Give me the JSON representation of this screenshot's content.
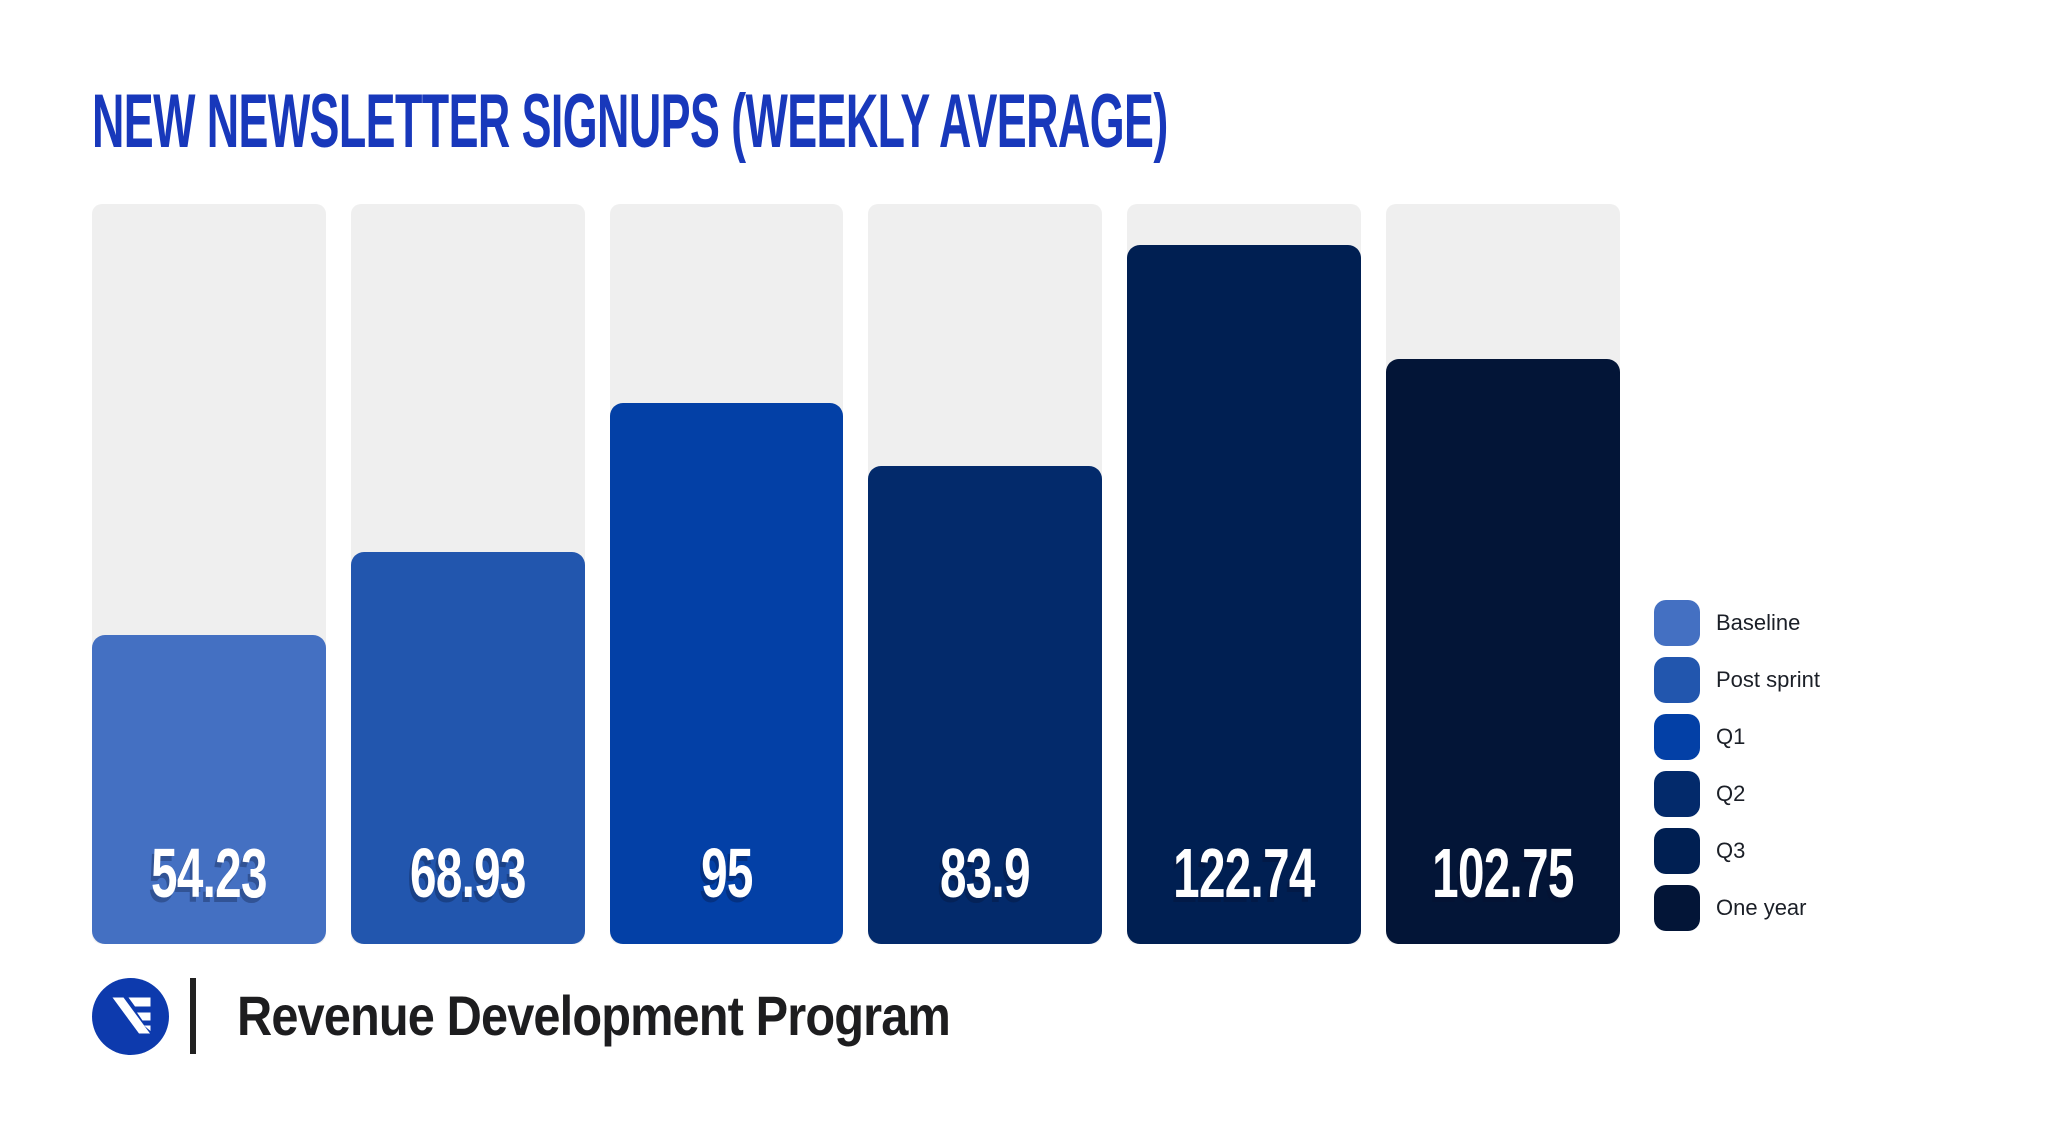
{
  "header": {
    "title": "NEW NEWSLETTER SIGNUPS (WEEKLY AVERAGE)",
    "title_color": "#1838bb"
  },
  "chart_data": {
    "type": "bar",
    "title": "NEW NEWSLETTER SIGNUPS (WEEKLY AVERAGE)",
    "categories": [
      "Baseline",
      "Post sprint",
      "Q1",
      "Q2",
      "Q3",
      "One year"
    ],
    "values": [
      54.23,
      68.93,
      95,
      83.9,
      122.74,
      102.75
    ],
    "value_labels": [
      "54.23",
      "68.93",
      "95",
      "83.9",
      "122.74",
      "102.75"
    ],
    "bar_colors": [
      "#4470c2",
      "#2256ae",
      "#0340a6",
      "#032a6b",
      "#001f52",
      "#031537"
    ],
    "track_color": "#efefef",
    "value_label_color": "#ffffff",
    "ylim": [
      0,
      130
    ],
    "grid": false,
    "xlabel": "",
    "ylabel": "",
    "legend_position": "right",
    "legend": [
      {
        "label": "Baseline",
        "color": "#4470c2"
      },
      {
        "label": "Post sprint",
        "color": "#2256ae"
      },
      {
        "label": "Q1",
        "color": "#0340a6"
      },
      {
        "label": "Q2",
        "color": "#032a6b"
      },
      {
        "label": "Q3",
        "color": "#001f52"
      },
      {
        "label": "One year",
        "color": "#031537"
      }
    ]
  },
  "footer": {
    "brand": "Revenue Development Program",
    "logo_icon": "newsletter-n-logo-icon",
    "logo_color": "#0d3aad",
    "logo_glyph_color": "#ffffff"
  }
}
